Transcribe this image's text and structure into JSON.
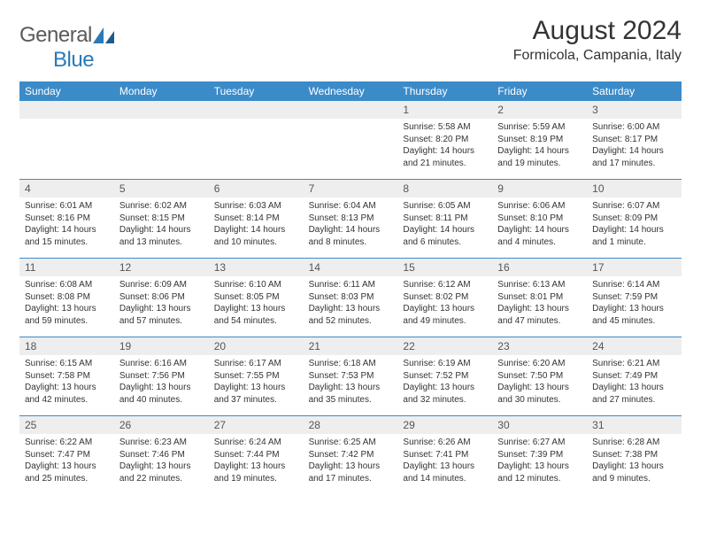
{
  "logo": {
    "text1": "General",
    "text2": "Blue"
  },
  "title": "August 2024",
  "location": "Formicola, Campania, Italy",
  "colors": {
    "header_bg": "#3b8bc9",
    "header_text": "#ffffff",
    "num_bg": "#eeeeee",
    "border": "#3b8bc9",
    "text": "#333333",
    "logo_gray": "#5a5a5a",
    "logo_blue": "#2a7ab8"
  },
  "day_names": [
    "Sunday",
    "Monday",
    "Tuesday",
    "Wednesday",
    "Thursday",
    "Friday",
    "Saturday"
  ],
  "weeks": [
    [
      {
        "n": "",
        "sr": "",
        "ss": "",
        "dl": ""
      },
      {
        "n": "",
        "sr": "",
        "ss": "",
        "dl": ""
      },
      {
        "n": "",
        "sr": "",
        "ss": "",
        "dl": ""
      },
      {
        "n": "",
        "sr": "",
        "ss": "",
        "dl": ""
      },
      {
        "n": "1",
        "sr": "Sunrise: 5:58 AM",
        "ss": "Sunset: 8:20 PM",
        "dl": "Daylight: 14 hours and 21 minutes."
      },
      {
        "n": "2",
        "sr": "Sunrise: 5:59 AM",
        "ss": "Sunset: 8:19 PM",
        "dl": "Daylight: 14 hours and 19 minutes."
      },
      {
        "n": "3",
        "sr": "Sunrise: 6:00 AM",
        "ss": "Sunset: 8:17 PM",
        "dl": "Daylight: 14 hours and 17 minutes."
      }
    ],
    [
      {
        "n": "4",
        "sr": "Sunrise: 6:01 AM",
        "ss": "Sunset: 8:16 PM",
        "dl": "Daylight: 14 hours and 15 minutes."
      },
      {
        "n": "5",
        "sr": "Sunrise: 6:02 AM",
        "ss": "Sunset: 8:15 PM",
        "dl": "Daylight: 14 hours and 13 minutes."
      },
      {
        "n": "6",
        "sr": "Sunrise: 6:03 AM",
        "ss": "Sunset: 8:14 PM",
        "dl": "Daylight: 14 hours and 10 minutes."
      },
      {
        "n": "7",
        "sr": "Sunrise: 6:04 AM",
        "ss": "Sunset: 8:13 PM",
        "dl": "Daylight: 14 hours and 8 minutes."
      },
      {
        "n": "8",
        "sr": "Sunrise: 6:05 AM",
        "ss": "Sunset: 8:11 PM",
        "dl": "Daylight: 14 hours and 6 minutes."
      },
      {
        "n": "9",
        "sr": "Sunrise: 6:06 AM",
        "ss": "Sunset: 8:10 PM",
        "dl": "Daylight: 14 hours and 4 minutes."
      },
      {
        "n": "10",
        "sr": "Sunrise: 6:07 AM",
        "ss": "Sunset: 8:09 PM",
        "dl": "Daylight: 14 hours and 1 minute."
      }
    ],
    [
      {
        "n": "11",
        "sr": "Sunrise: 6:08 AM",
        "ss": "Sunset: 8:08 PM",
        "dl": "Daylight: 13 hours and 59 minutes."
      },
      {
        "n": "12",
        "sr": "Sunrise: 6:09 AM",
        "ss": "Sunset: 8:06 PM",
        "dl": "Daylight: 13 hours and 57 minutes."
      },
      {
        "n": "13",
        "sr": "Sunrise: 6:10 AM",
        "ss": "Sunset: 8:05 PM",
        "dl": "Daylight: 13 hours and 54 minutes."
      },
      {
        "n": "14",
        "sr": "Sunrise: 6:11 AM",
        "ss": "Sunset: 8:03 PM",
        "dl": "Daylight: 13 hours and 52 minutes."
      },
      {
        "n": "15",
        "sr": "Sunrise: 6:12 AM",
        "ss": "Sunset: 8:02 PM",
        "dl": "Daylight: 13 hours and 49 minutes."
      },
      {
        "n": "16",
        "sr": "Sunrise: 6:13 AM",
        "ss": "Sunset: 8:01 PM",
        "dl": "Daylight: 13 hours and 47 minutes."
      },
      {
        "n": "17",
        "sr": "Sunrise: 6:14 AM",
        "ss": "Sunset: 7:59 PM",
        "dl": "Daylight: 13 hours and 45 minutes."
      }
    ],
    [
      {
        "n": "18",
        "sr": "Sunrise: 6:15 AM",
        "ss": "Sunset: 7:58 PM",
        "dl": "Daylight: 13 hours and 42 minutes."
      },
      {
        "n": "19",
        "sr": "Sunrise: 6:16 AM",
        "ss": "Sunset: 7:56 PM",
        "dl": "Daylight: 13 hours and 40 minutes."
      },
      {
        "n": "20",
        "sr": "Sunrise: 6:17 AM",
        "ss": "Sunset: 7:55 PM",
        "dl": "Daylight: 13 hours and 37 minutes."
      },
      {
        "n": "21",
        "sr": "Sunrise: 6:18 AM",
        "ss": "Sunset: 7:53 PM",
        "dl": "Daylight: 13 hours and 35 minutes."
      },
      {
        "n": "22",
        "sr": "Sunrise: 6:19 AM",
        "ss": "Sunset: 7:52 PM",
        "dl": "Daylight: 13 hours and 32 minutes."
      },
      {
        "n": "23",
        "sr": "Sunrise: 6:20 AM",
        "ss": "Sunset: 7:50 PM",
        "dl": "Daylight: 13 hours and 30 minutes."
      },
      {
        "n": "24",
        "sr": "Sunrise: 6:21 AM",
        "ss": "Sunset: 7:49 PM",
        "dl": "Daylight: 13 hours and 27 minutes."
      }
    ],
    [
      {
        "n": "25",
        "sr": "Sunrise: 6:22 AM",
        "ss": "Sunset: 7:47 PM",
        "dl": "Daylight: 13 hours and 25 minutes."
      },
      {
        "n": "26",
        "sr": "Sunrise: 6:23 AM",
        "ss": "Sunset: 7:46 PM",
        "dl": "Daylight: 13 hours and 22 minutes."
      },
      {
        "n": "27",
        "sr": "Sunrise: 6:24 AM",
        "ss": "Sunset: 7:44 PM",
        "dl": "Daylight: 13 hours and 19 minutes."
      },
      {
        "n": "28",
        "sr": "Sunrise: 6:25 AM",
        "ss": "Sunset: 7:42 PM",
        "dl": "Daylight: 13 hours and 17 minutes."
      },
      {
        "n": "29",
        "sr": "Sunrise: 6:26 AM",
        "ss": "Sunset: 7:41 PM",
        "dl": "Daylight: 13 hours and 14 minutes."
      },
      {
        "n": "30",
        "sr": "Sunrise: 6:27 AM",
        "ss": "Sunset: 7:39 PM",
        "dl": "Daylight: 13 hours and 12 minutes."
      },
      {
        "n": "31",
        "sr": "Sunrise: 6:28 AM",
        "ss": "Sunset: 7:38 PM",
        "dl": "Daylight: 13 hours and 9 minutes."
      }
    ]
  ]
}
